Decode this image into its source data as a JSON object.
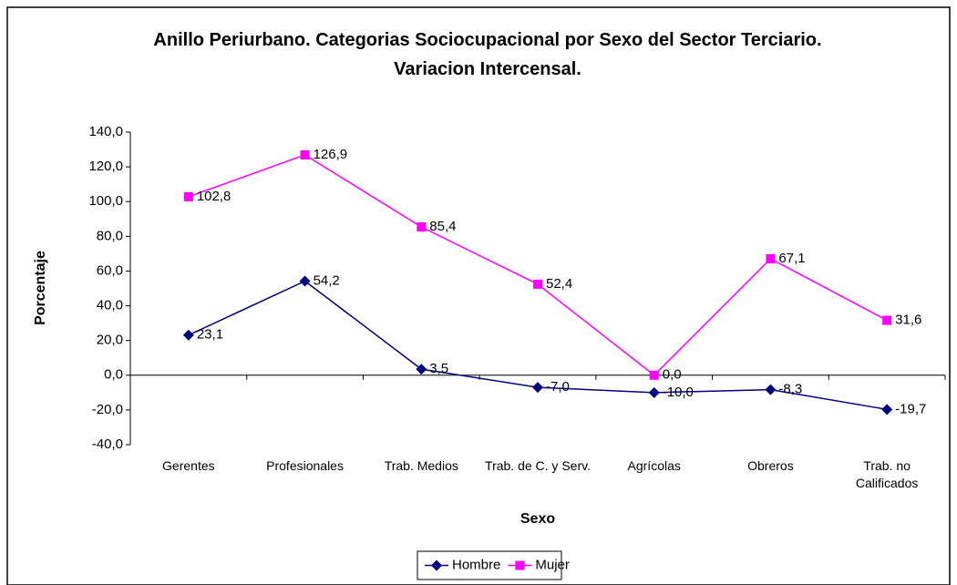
{
  "chart_data": {
    "type": "line",
    "title": "Anillo Periurbano. Categorias Sociocupacional por Sexo del Sector Terciario. Variacion Intercensal.",
    "x_label": "Sexo",
    "y_label": "Porcentaje",
    "categories": [
      "Gerentes",
      "Profesionales",
      "Trab. Medios",
      "Trab. de C. y Serv.",
      "Agrícolas",
      "Obreros",
      "Trab. no Calificados"
    ],
    "series": [
      {
        "name": "Hombre",
        "color": "#000080",
        "marker": "diamond",
        "values": [
          23.1,
          54.2,
          3.5,
          -7.0,
          -10.0,
          -8.3,
          -19.7
        ],
        "value_labels": [
          "23,1",
          "54,2",
          "3,5",
          "-7,0",
          "-10,0",
          "-8,3",
          "-19,7"
        ]
      },
      {
        "name": "Mujer",
        "color": "#ff00ff",
        "marker": "square",
        "values": [
          102.8,
          126.9,
          85.4,
          52.4,
          0.0,
          67.1,
          31.6
        ],
        "value_labels": [
          "102,8",
          "126,9",
          "85,4",
          "52,4",
          "0,0",
          "67,1",
          "31,6"
        ]
      }
    ],
    "ylim": [
      -40,
      140
    ],
    "yticks": [
      {
        "value": 140,
        "label": "140,0"
      },
      {
        "value": 120,
        "label": "120,0"
      },
      {
        "value": 100,
        "label": "100,0"
      },
      {
        "value": 80,
        "label": "80,0"
      },
      {
        "value": 60,
        "label": "60,0"
      },
      {
        "value": 40,
        "label": "40,0"
      },
      {
        "value": 20,
        "label": "20,0"
      },
      {
        "value": 0,
        "label": "0,0"
      },
      {
        "value": -20,
        "label": "-20,0"
      },
      {
        "value": -40,
        "label": "-40,0"
      }
    ],
    "grid": false,
    "legend": "bottom"
  }
}
